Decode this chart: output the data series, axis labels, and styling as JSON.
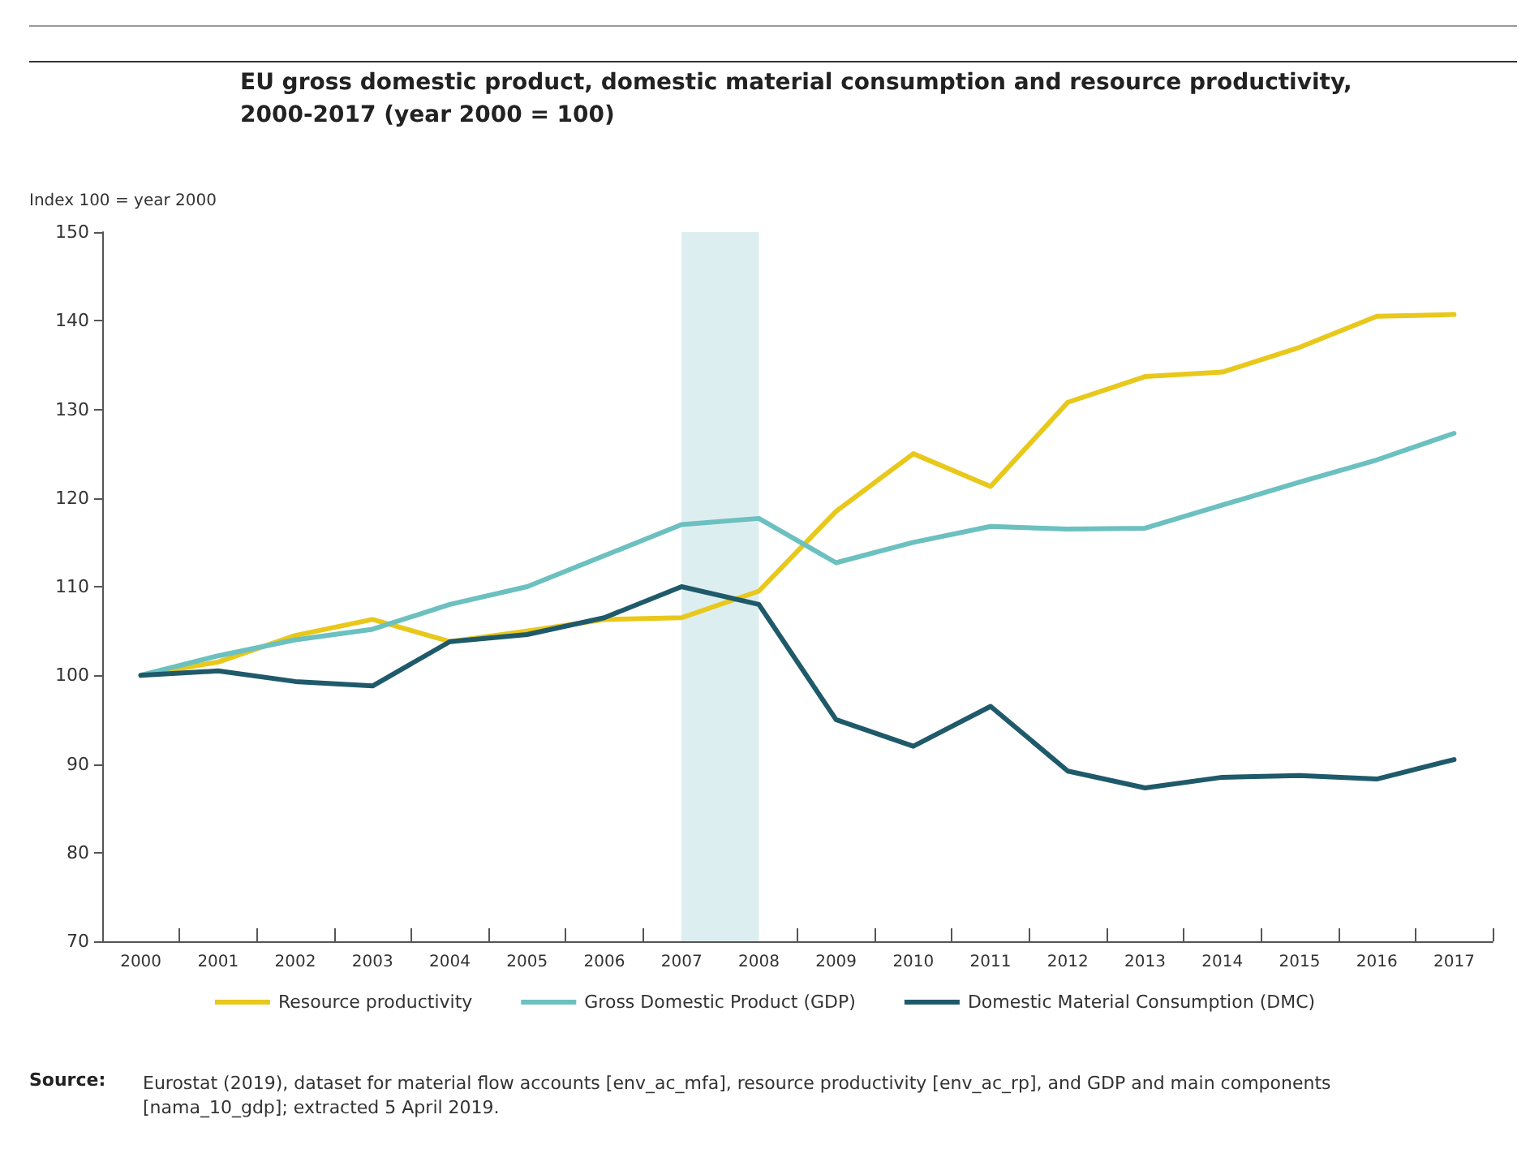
{
  "chart_data": {
    "type": "line",
    "title": "EU gross domestic product, domestic material consumption and resource productivity,\n2000-2017 (year 2000 = 100)",
    "ylabel": "Index 100 = year 2000",
    "categories": [
      "2000",
      "2001",
      "2002",
      "2003",
      "2004",
      "2005",
      "2006",
      "2007",
      "2008",
      "2009",
      "2010",
      "2011",
      "2012",
      "2013",
      "2014",
      "2015",
      "2016",
      "2017"
    ],
    "series": [
      {
        "name": "Resource productivity",
        "color": "#e8c81a",
        "values": [
          100,
          101.5,
          104.5,
          106.3,
          103.8,
          105,
          106.3,
          106.5,
          109.5,
          118.5,
          125,
          121.3,
          130.8,
          133.7,
          134.2,
          137,
          140.5,
          140.7
        ]
      },
      {
        "name": "Gross Domestic Product (GDP)",
        "color": "#6cc0c0",
        "values": [
          100,
          102.2,
          104,
          105.2,
          108,
          110,
          113.5,
          117,
          117.7,
          112.7,
          115,
          116.8,
          116.5,
          116.6,
          119.2,
          121.8,
          124.3,
          127.3
        ]
      },
      {
        "name": "Domestic Material Consumption (DMC)",
        "color": "#1f5a6a",
        "values": [
          100,
          100.5,
          99.3,
          98.8,
          103.8,
          104.6,
          106.5,
          110,
          108,
          95,
          92,
          96.5,
          89.2,
          87.3,
          88.5,
          88.7,
          88.3,
          90.5
        ]
      }
    ],
    "bands": [
      {
        "axis": "x",
        "from": "2007",
        "to": "2008",
        "color": "#ddeef0"
      }
    ],
    "ylim": [
      70,
      150
    ],
    "yticks": [
      70,
      80,
      90,
      100,
      110,
      120,
      130,
      140,
      150
    ],
    "grid": false,
    "legend": "bottom",
    "marker": "none",
    "line_style": "solid",
    "annotations": [
      "Source:",
      "Eurostat (2019), dataset for material flow accounts [env_ac_mfa], resource productivity [env_ac_rp], and GDP and main components\n[nama_10_gdp]; extracted 5 April 2019."
    ]
  }
}
